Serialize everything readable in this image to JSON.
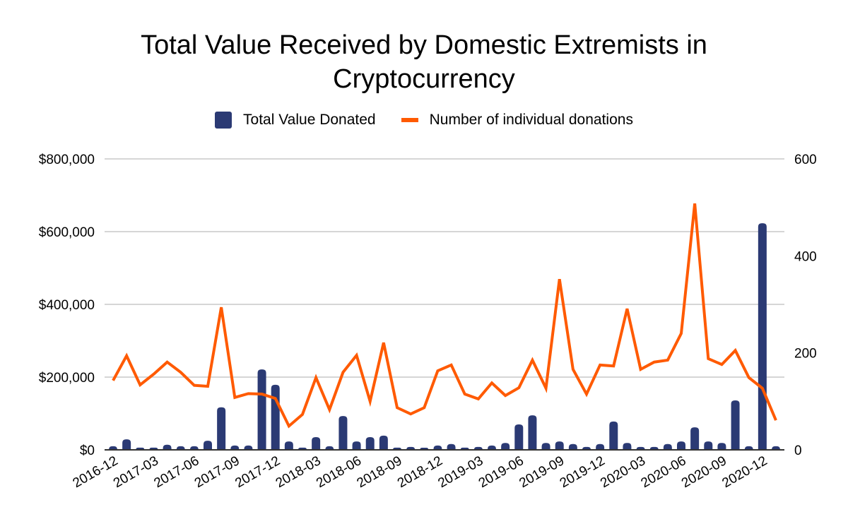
{
  "chart_data": {
    "type": "bar+line",
    "title_lines": [
      "Total Value Received by Domestic Extremists in",
      "Cryptocurrency"
    ],
    "legend_position": "top-center",
    "categories": [
      "2016-12",
      "2017-01",
      "2017-02",
      "2017-03",
      "2017-04",
      "2017-05",
      "2017-06",
      "2017-07",
      "2017-08",
      "2017-09",
      "2017-10",
      "2017-11",
      "2017-12",
      "2018-01",
      "2018-02",
      "2018-03",
      "2018-04",
      "2018-05",
      "2018-06",
      "2018-07",
      "2018-08",
      "2018-09",
      "2018-10",
      "2018-11",
      "2018-12",
      "2019-01",
      "2019-02",
      "2019-03",
      "2019-04",
      "2019-05",
      "2019-06",
      "2019-07",
      "2019-08",
      "2019-09",
      "2019-10",
      "2019-11",
      "2019-12",
      "2020-01",
      "2020-02",
      "2020-03",
      "2020-04",
      "2020-05",
      "2020-06",
      "2020-07",
      "2020-08",
      "2020-09",
      "2020-10",
      "2020-11",
      "2020-12",
      "2021-01"
    ],
    "x_tick_labels": [
      "2016-12",
      "2017-03",
      "2017-06",
      "2017-09",
      "2017-12",
      "2018-03",
      "2018-06",
      "2018-09",
      "2018-12",
      "2019-03",
      "2019-06",
      "2019-09",
      "2019-12",
      "2020-03",
      "2020-06",
      "2020-09",
      "2020-12"
    ],
    "series": [
      {
        "name": "Total Value Donated",
        "type": "bar",
        "axis": "left",
        "color": "#2b3a74",
        "values": [
          10000,
          29000,
          6000,
          6000,
          14000,
          10000,
          10000,
          25000,
          117000,
          12000,
          12000,
          221000,
          179000,
          23000,
          6000,
          35000,
          10000,
          93000,
          23000,
          35000,
          39000,
          6000,
          8000,
          2000,
          12000,
          16000,
          6000,
          8000,
          12000,
          19000,
          70000,
          95000,
          19000,
          23000,
          16000,
          8000,
          16000,
          78000,
          19000,
          8000,
          8000,
          16000,
          23000,
          62000,
          23000,
          19000,
          136000,
          10000,
          623000,
          10000
        ]
      },
      {
        "name": "Number of individual donations",
        "type": "line",
        "axis": "right",
        "color": "#ff5a00",
        "values": [
          143,
          194,
          134,
          156,
          181,
          160,
          133,
          131,
          294,
          108,
          116,
          115,
          106,
          49,
          73,
          149,
          83,
          160,
          195,
          100,
          221,
          87,
          74,
          87,
          163,
          175,
          115,
          105,
          138,
          112,
          128,
          185,
          127,
          352,
          166,
          115,
          175,
          173,
          291,
          166,
          181,
          185,
          240,
          508,
          188,
          176,
          205,
          149,
          127,
          61
        ]
      }
    ],
    "y_left": {
      "ylim": [
        0,
        800000
      ],
      "ticks": [
        0,
        200000,
        400000,
        600000,
        800000
      ],
      "tick_labels": [
        "$0",
        "$200,000",
        "$400,000",
        "$600,000",
        "$800,000"
      ]
    },
    "y_right": {
      "ylim": [
        0,
        600
      ],
      "ticks": [
        0,
        200,
        400,
        600
      ],
      "tick_labels": [
        "0",
        "200",
        "400",
        "600"
      ]
    },
    "grid": true,
    "xlabel": "",
    "ylabel": ""
  }
}
